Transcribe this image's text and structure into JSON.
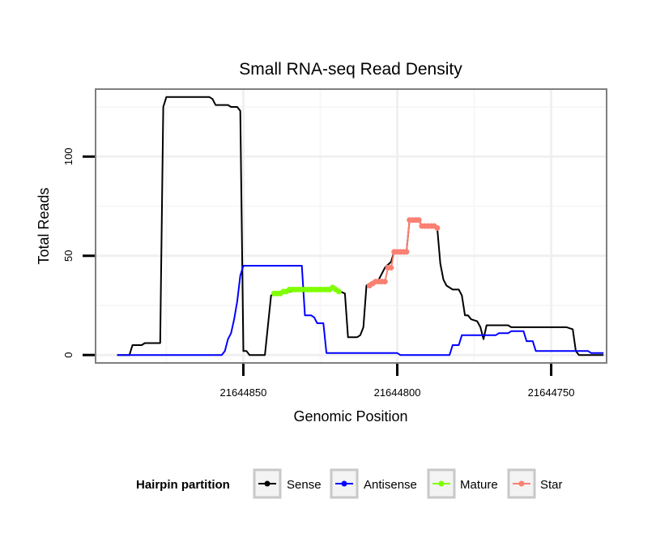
{
  "chart_data": {
    "type": "line",
    "title": "Small RNA-seq Read Density",
    "xlabel": "Genomic Position",
    "ylabel": "Total Reads",
    "x_reversed": true,
    "xlim": [
      21644732,
      21644898
    ],
    "ylim": [
      -4,
      134
    ],
    "xticks": [
      21644850,
      21644800,
      21644750
    ],
    "xtick_labels": [
      "21644850",
      "21644800",
      "21644750"
    ],
    "yticks": [
      0,
      50,
      100
    ],
    "ytick_labels": [
      "0",
      "50",
      "100"
    ],
    "grid": true,
    "legend": {
      "title": "Hairpin partition",
      "position": "bottom",
      "entries": [
        {
          "name": "Sense",
          "color": "#000000"
        },
        {
          "name": "Antisense",
          "color": "#0000ff"
        },
        {
          "name": "Mature",
          "color": "#7fff00"
        },
        {
          "name": "Star",
          "color": "#fa8072"
        }
      ]
    },
    "series": [
      {
        "name": "Sense",
        "color": "#000000",
        "points": [
          [
            21644891,
            0
          ],
          [
            21644887,
            0
          ],
          [
            21644886,
            5
          ],
          [
            21644883,
            5
          ],
          [
            21644882,
            6
          ],
          [
            21644877,
            6
          ],
          [
            21644876,
            125
          ],
          [
            21644875,
            130
          ],
          [
            21644861,
            130
          ],
          [
            21644860,
            129
          ],
          [
            21644859,
            126
          ],
          [
            21644855,
            126
          ],
          [
            21644854,
            125
          ],
          [
            21644852,
            125
          ],
          [
            21644851,
            123
          ],
          [
            21644850,
            2
          ],
          [
            21644849,
            2
          ],
          [
            21644848,
            0
          ],
          [
            21644843,
            0
          ],
          [
            21644841,
            30
          ],
          [
            21644839,
            31
          ],
          [
            21644830,
            33
          ],
          [
            21644820,
            33
          ],
          [
            21644817,
            31
          ],
          [
            21644816,
            9
          ],
          [
            21644813,
            9
          ],
          [
            21644812,
            10
          ],
          [
            21644811,
            14
          ],
          [
            21644810,
            35
          ],
          [
            21644808,
            37
          ],
          [
            21644806,
            38
          ],
          [
            21644804,
            44
          ],
          [
            21644802,
            47
          ],
          [
            21644801,
            52
          ],
          [
            21644797,
            52
          ],
          [
            21644796,
            68
          ],
          [
            21644793,
            68
          ],
          [
            21644792,
            65
          ],
          [
            21644788,
            65
          ],
          [
            21644787,
            64
          ],
          [
            21644786,
            46
          ],
          [
            21644785,
            38
          ],
          [
            21644784,
            35
          ],
          [
            21644782,
            33
          ],
          [
            21644780,
            33
          ],
          [
            21644779,
            30
          ],
          [
            21644778,
            20
          ],
          [
            21644777,
            20
          ],
          [
            21644776,
            18
          ],
          [
            21644774,
            17
          ],
          [
            21644773,
            14
          ],
          [
            21644772,
            8
          ],
          [
            21644771,
            15
          ],
          [
            21644770,
            15
          ],
          [
            21644764,
            15
          ],
          [
            21644763,
            14
          ],
          [
            21644745,
            14
          ],
          [
            21644743,
            13
          ],
          [
            21644742,
            2
          ],
          [
            21644741,
            0
          ],
          [
            21644733,
            0
          ]
        ]
      },
      {
        "name": "Antisense",
        "color": "#0000ff",
        "points": [
          [
            21644891,
            0
          ],
          [
            21644857,
            0
          ],
          [
            21644856,
            2
          ],
          [
            21644855,
            8
          ],
          [
            21644854,
            11
          ],
          [
            21644853,
            18
          ],
          [
            21644852,
            27
          ],
          [
            21644851,
            40
          ],
          [
            21644850,
            45
          ],
          [
            21644831,
            45
          ],
          [
            21644830,
            20
          ],
          [
            21644828,
            20
          ],
          [
            21644827,
            19
          ],
          [
            21644826,
            16
          ],
          [
            21644824,
            16
          ],
          [
            21644823,
            1
          ],
          [
            21644800,
            1
          ],
          [
            21644799,
            0
          ],
          [
            21644783,
            0
          ],
          [
            21644782,
            5
          ],
          [
            21644780,
            5
          ],
          [
            21644779,
            10
          ],
          [
            21644768,
            10
          ],
          [
            21644767,
            11
          ],
          [
            21644764,
            11
          ],
          [
            21644763,
            12
          ],
          [
            21644759,
            12
          ],
          [
            21644758,
            7
          ],
          [
            21644756,
            7
          ],
          [
            21644755,
            2
          ],
          [
            21644738,
            2
          ],
          [
            21644737,
            1
          ],
          [
            21644733,
            1
          ]
        ]
      },
      {
        "name": "Mature",
        "color": "#7fff00",
        "points": [
          [
            21644840,
            31
          ],
          [
            21644839,
            31
          ],
          [
            21644838,
            31
          ],
          [
            21644837,
            32
          ],
          [
            21644836,
            32
          ],
          [
            21644835,
            33
          ],
          [
            21644834,
            33
          ],
          [
            21644833,
            33
          ],
          [
            21644832,
            33
          ],
          [
            21644831,
            33
          ],
          [
            21644830,
            33
          ],
          [
            21644829,
            33
          ],
          [
            21644828,
            33
          ],
          [
            21644827,
            33
          ],
          [
            21644826,
            33
          ],
          [
            21644825,
            33
          ],
          [
            21644824,
            33
          ],
          [
            21644823,
            33
          ],
          [
            21644822,
            33
          ],
          [
            21644821,
            34
          ],
          [
            21644820,
            33
          ],
          [
            21644819,
            32
          ]
        ]
      },
      {
        "name": "Star",
        "color": "#fa8072",
        "points": [
          [
            21644809,
            35
          ],
          [
            21644808,
            36
          ],
          [
            21644807,
            37
          ],
          [
            21644806,
            37
          ],
          [
            21644805,
            37
          ],
          [
            21644804,
            37
          ],
          [
            21644803,
            44
          ],
          [
            21644802,
            44
          ],
          [
            21644801,
            52
          ],
          [
            21644800,
            52
          ],
          [
            21644799,
            52
          ],
          [
            21644798,
            52
          ],
          [
            21644797,
            52
          ],
          [
            21644796,
            68
          ],
          [
            21644795,
            68
          ],
          [
            21644794,
            68
          ],
          [
            21644793,
            68
          ],
          [
            21644792,
            65
          ],
          [
            21644791,
            65
          ],
          [
            21644790,
            65
          ],
          [
            21644789,
            65
          ],
          [
            21644788,
            65
          ],
          [
            21644787,
            64
          ]
        ]
      }
    ]
  }
}
